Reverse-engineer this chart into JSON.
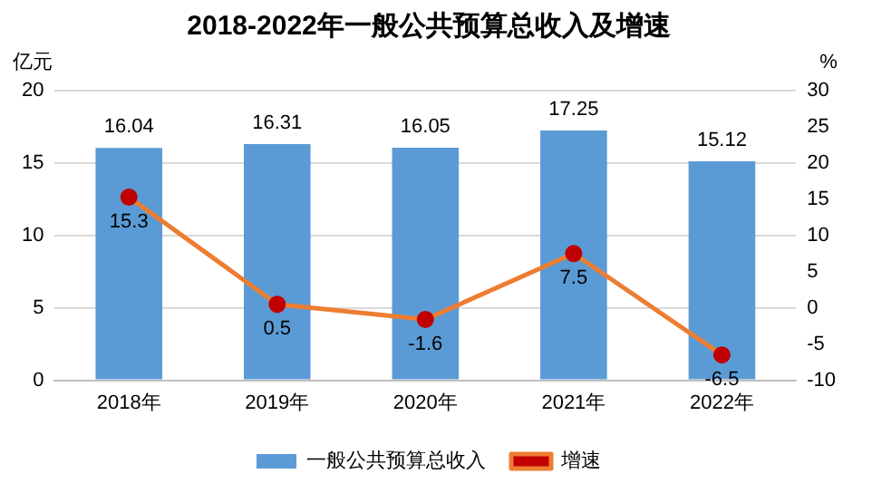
{
  "chart_data": {
    "type": "bar",
    "title": "2018-2022年一般公共预算总收入及增速",
    "ylabel": "亿元",
    "y2label": "%",
    "categories": [
      "2018年",
      "2019年",
      "2020年",
      "2021年",
      "2022年"
    ],
    "series": [
      {
        "name": "一般公共预算总收入",
        "color": "#5b9bd5",
        "values": [
          16.04,
          16.31,
          16.05,
          17.25,
          15.12
        ]
      },
      {
        "name": "增速",
        "type": "line",
        "axis": "y2",
        "color": "#ed7d31",
        "values": [
          15.3,
          0.5,
          -1.6,
          7.5,
          -6.5
        ]
      }
    ],
    "ylim": [
      0,
      20
    ],
    "yticks": [
      0,
      5,
      10,
      15,
      20
    ],
    "y2lim": [
      -10,
      30
    ],
    "y2ticks": [
      -10,
      -5,
      0,
      5,
      10,
      15,
      20,
      25,
      30
    ],
    "grid": "y",
    "legend": "bottom",
    "marker": "circle",
    "data_labels": true
  }
}
